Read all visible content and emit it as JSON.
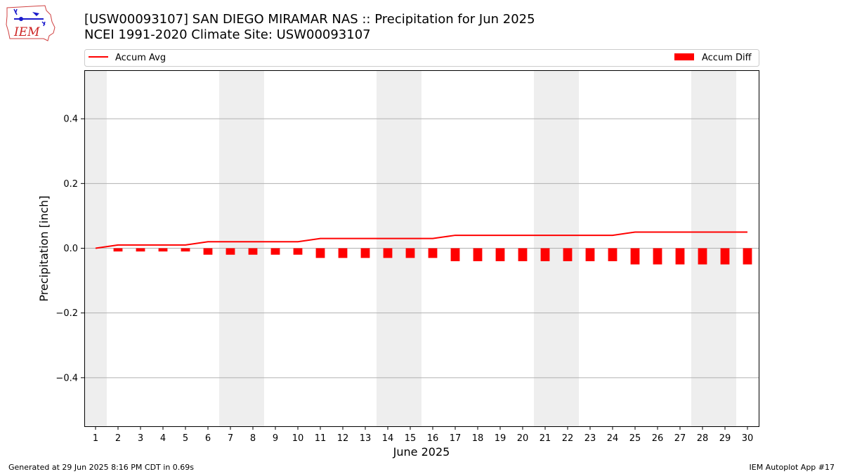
{
  "header": {
    "title_line1": "[USW00093107] SAN DIEGO MIRAMAR NAS :: Precipitation for Jun 2025",
    "title_line2": "NCEI 1991-2020 Climate Site: USW00093107"
  },
  "logo": {
    "text": "IEM",
    "icon": "iem-iowa-logo-icon"
  },
  "footer": {
    "left": "Generated at 29 Jun 2025 8:16 PM CDT in 0.69s",
    "right": "IEM Autoplot App #17"
  },
  "colors": {
    "series": "#ff0000",
    "weekend_band": "#eeeeee",
    "grid": "#b0b0b0"
  },
  "chart_data": {
    "type": "bar",
    "xlabel": "June 2025",
    "ylabel": "Precipitation [inch]",
    "ylim": [
      -0.55,
      0.55
    ],
    "xlim": [
      0.5,
      30.5
    ],
    "yticks": [
      -0.4,
      -0.2,
      0.0,
      0.2,
      0.4
    ],
    "ytick_labels": [
      "−0.4",
      "−0.2",
      "0.0",
      "0.2",
      "0.4"
    ],
    "x": [
      1,
      2,
      3,
      4,
      5,
      6,
      7,
      8,
      9,
      10,
      11,
      12,
      13,
      14,
      15,
      16,
      17,
      18,
      19,
      20,
      21,
      22,
      23,
      24,
      25,
      26,
      27,
      28,
      29,
      30
    ],
    "grid": "horizontal",
    "legend": {
      "placement": "top"
    },
    "weekend_days": [
      1,
      7,
      8,
      14,
      15,
      21,
      22,
      28,
      29
    ],
    "series": [
      {
        "name": "Accum Avg",
        "kind": "line",
        "values": [
          0.0,
          0.01,
          0.01,
          0.01,
          0.01,
          0.02,
          0.02,
          0.02,
          0.02,
          0.02,
          0.03,
          0.03,
          0.03,
          0.03,
          0.03,
          0.03,
          0.04,
          0.04,
          0.04,
          0.04,
          0.04,
          0.04,
          0.04,
          0.04,
          0.05,
          0.05,
          0.05,
          0.05,
          0.05,
          0.05
        ]
      },
      {
        "name": "Accum Diff",
        "kind": "bar",
        "values": [
          0.0,
          -0.01,
          -0.01,
          -0.01,
          -0.01,
          -0.02,
          -0.02,
          -0.02,
          -0.02,
          -0.02,
          -0.03,
          -0.03,
          -0.03,
          -0.03,
          -0.03,
          -0.03,
          -0.04,
          -0.04,
          -0.04,
          -0.04,
          -0.04,
          -0.04,
          -0.04,
          -0.04,
          -0.05,
          -0.05,
          -0.05,
          -0.05,
          -0.05,
          -0.05
        ]
      }
    ]
  }
}
